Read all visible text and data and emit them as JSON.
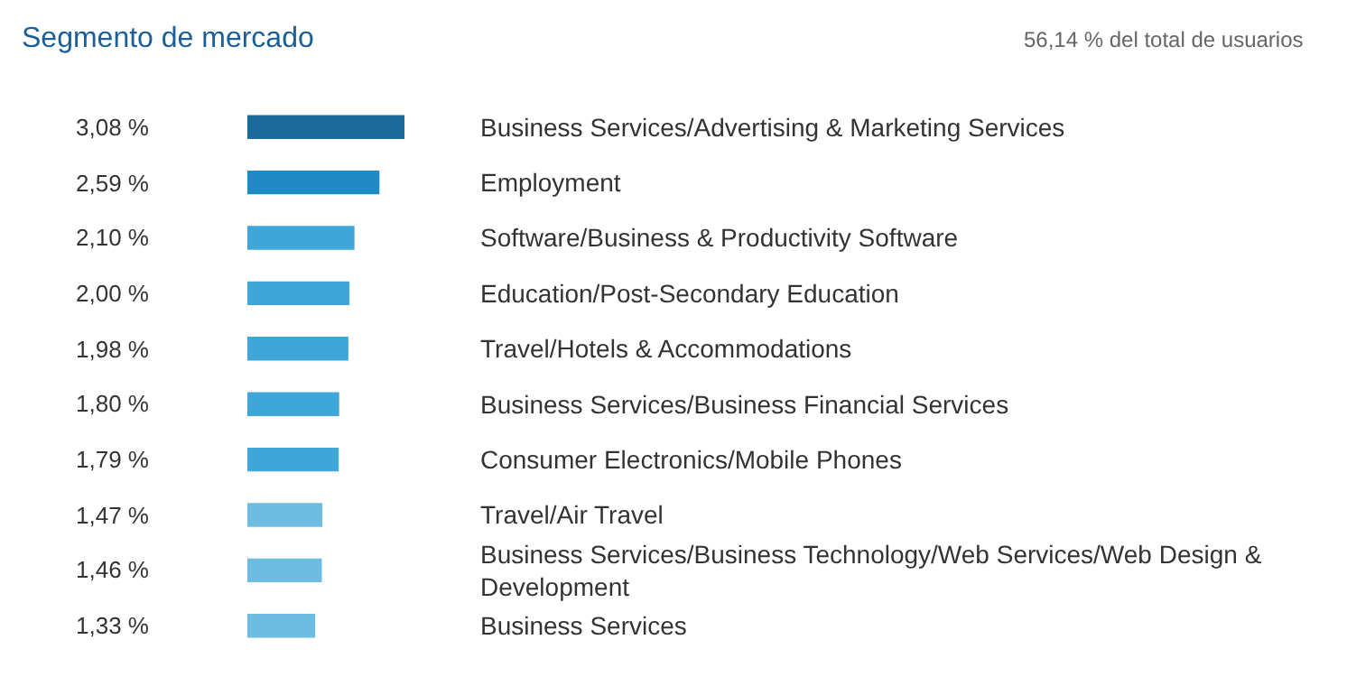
{
  "chart_data": {
    "type": "bar",
    "orientation": "horizontal",
    "title": "Segmento de mercado",
    "subtitle": "56,14 % del total de usuarios",
    "categories": [
      "Business Services/Advertising & Marketing Services",
      "Employment",
      "Software/Business & Productivity Software",
      "Education/Post-Secondary Education",
      "Travel/Hotels & Accommodations",
      "Business Services/Business Financial Services",
      "Consumer Electronics/Mobile Phones",
      "Travel/Air Travel",
      "Business Services/Business Technology/Web Services/Web Design & Development",
      "Business Services"
    ],
    "values": [
      3.08,
      2.59,
      2.1,
      2.0,
      1.98,
      1.8,
      1.79,
      1.47,
      1.46,
      1.33
    ],
    "value_labels": [
      "3,08 %",
      "2,59 %",
      "2,10 %",
      "2,00 %",
      "1,98 %",
      "1,80 %",
      "1,79 %",
      "1,47 %",
      "1,46 %",
      "1,33 %"
    ],
    "colors": [
      "#1b6a9c",
      "#1f8bc4",
      "#3ea6d8",
      "#3ea6d8",
      "#3ea6d8",
      "#3ea6d8",
      "#3ea6d8",
      "#6dbde3",
      "#6dbde3",
      "#6dbde3"
    ]
  }
}
